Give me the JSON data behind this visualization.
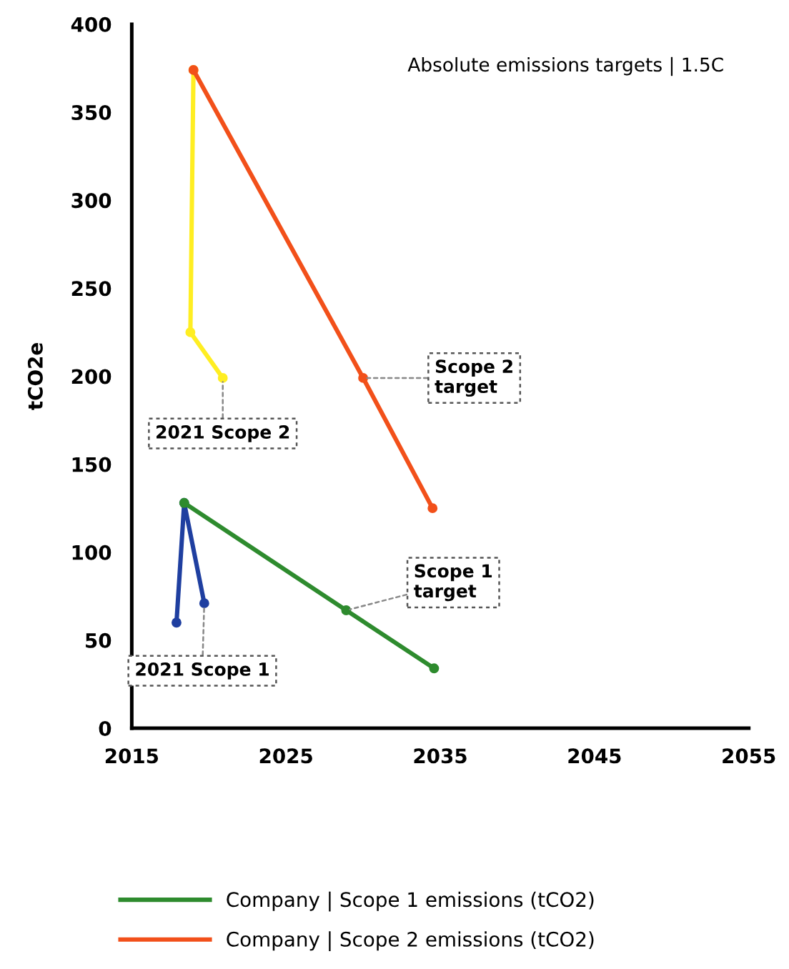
{
  "chart_data": {
    "type": "line",
    "title": "Absolute emissions targets | 1.5C",
    "ylabel": "tCO2e",
    "xlim": [
      2015,
      2055
    ],
    "xticks": [
      2015,
      2025,
      2035,
      2045,
      2055
    ],
    "ylim": [
      0,
      400
    ],
    "yticks": [
      0,
      50,
      100,
      150,
      200,
      250,
      300,
      350,
      400
    ],
    "grid": false,
    "legend": "bottom",
    "marker": "circle",
    "line_style": "solid",
    "series": [
      {
        "x": [
          2017.9,
          2018.4,
          2019.7
        ],
        "values": [
          60,
          128,
          71
        ],
        "color": "#1f3fa0"
      },
      {
        "x": [
          2019.0,
          2018.8,
          2020.9
        ],
        "values": [
          374,
          225,
          199
        ],
        "color": "#ffee22"
      },
      {
        "name": "Company | Scope 1 emissions (tCO2)",
        "x": [
          2018.4,
          2028.9,
          2034.6
        ],
        "values": [
          128,
          67,
          34
        ],
        "color": "#2e8b2e"
      },
      {
        "name": "Company | Scope 2 emissions (tCO2)",
        "x": [
          2019.0,
          2030.0,
          2034.5
        ],
        "values": [
          374,
          199,
          125
        ],
        "color": "#f2501a"
      }
    ],
    "annotations": [
      {
        "text": "2021 Scope 2",
        "x": 2020.9,
        "y": 199
      },
      {
        "text": "Scope 2\ntarget",
        "x": 2030.0,
        "y": 199
      },
      {
        "text": "Scope 1\ntarget",
        "x": 2028.9,
        "y": 67
      },
      {
        "text": "2021 Scope 1",
        "x": 2019.7,
        "y": 71
      }
    ]
  }
}
